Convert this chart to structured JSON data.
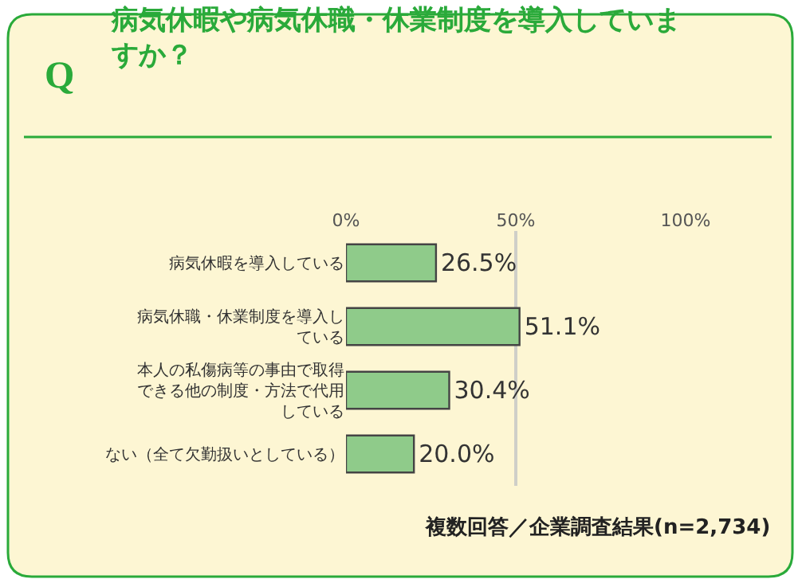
{
  "chart_data": {
    "type": "bar",
    "orientation": "horizontal",
    "title": "病気休暇や病気休職・休業制度を導入していますか？",
    "categories": [
      "病気休暇を導入している",
      "病気休職・休業制度を導入している",
      "本人の私傷病等の事由で取得できる他の制度・方法で代用している",
      "ない（全て欠勤扱いとしている）"
    ],
    "values": [
      26.5,
      51.1,
      30.4,
      20.0
    ],
    "value_labels": [
      "26.5%",
      "51.1%",
      "30.4%",
      "20.0%"
    ],
    "color": "#8fcb8a",
    "xlim": [
      0,
      100
    ],
    "xticks": [
      {
        "value": 0,
        "label": "0%"
      },
      {
        "value": 50,
        "label": "50%"
      },
      {
        "value": 100,
        "label": "100%"
      }
    ],
    "grid": "x",
    "legend": false,
    "annotations": [
      "Q",
      "複数回答／企業調査結果(n=2,734)"
    ]
  }
}
